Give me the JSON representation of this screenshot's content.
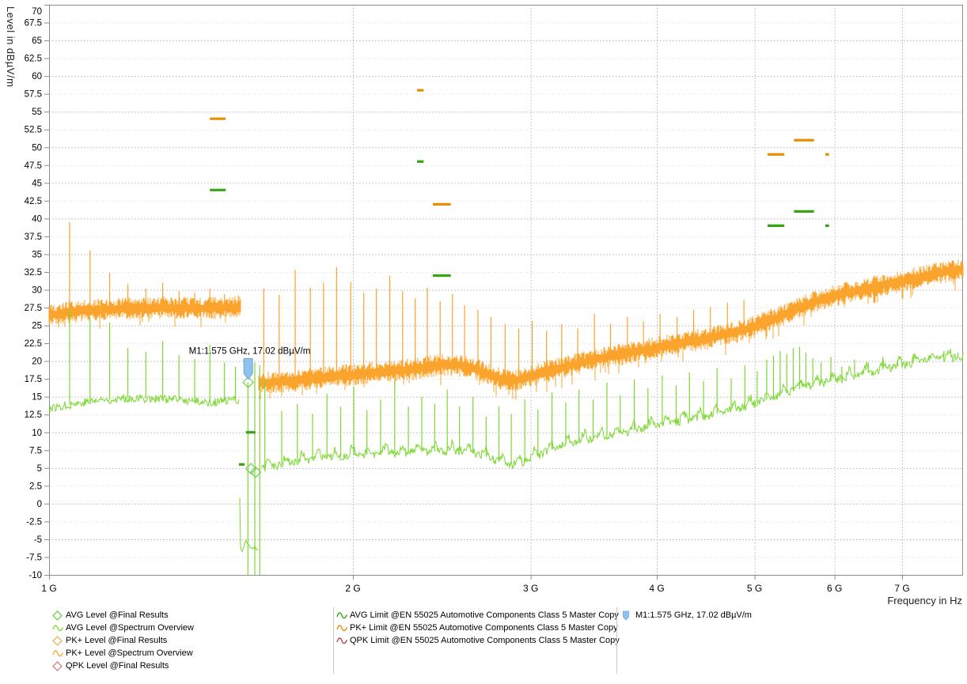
{
  "colors": {
    "trace_pk_overview": "#FBA42D",
    "trace_avg_overview": "#7CD832",
    "limit_pk": "#E88F00",
    "limit_avg": "#35A511",
    "limit_qpk": "#B04545",
    "diamond_avg": "#6FD349",
    "diamond_pk": "#F0B25C",
    "diamond_qpk": "#D97F7F",
    "marker_fill": "#8FC3EE",
    "marker_stroke": "#6FA6DD",
    "grid_minor": "#d7d7d7",
    "grid_major": "#b5b5b5",
    "border": "#8c8c8c",
    "tick_text": "#000000"
  },
  "chart_data": {
    "type": "line",
    "title": "",
    "xlabel": "Frequency in Hz",
    "ylabel": "Level in dBµV/m",
    "x_scale": "log",
    "xlim_ghz": [
      1.0,
      8.05
    ],
    "ylim": [
      -10,
      70
    ],
    "y_tick_step": 2.5,
    "y_ticks": [
      70,
      67.5,
      65,
      62.5,
      60,
      57.5,
      55,
      52.5,
      50,
      47.5,
      45,
      42.5,
      40,
      37.5,
      35,
      32.5,
      30,
      27.5,
      25,
      22.5,
      20,
      17.5,
      15,
      12.5,
      10,
      7.5,
      5,
      2.5,
      0,
      -2.5,
      -5,
      -7.5,
      -10
    ],
    "x_ticks": [
      {
        "f": 1,
        "label": "1 G"
      },
      {
        "f": 2,
        "label": "2 G"
      },
      {
        "f": 3,
        "label": "3 G"
      },
      {
        "f": 4,
        "label": "4 G"
      },
      {
        "f": 5,
        "label": "5 G"
      },
      {
        "f": 6,
        "label": "6 G"
      },
      {
        "f": 7,
        "label": "7 G"
      }
    ],
    "series": [
      {
        "name": "PK+ Level @Spectrum Overview",
        "color": "#FBA42D",
        "style": "band",
        "noise_db": 1.1,
        "seed": 42,
        "segments": [
          {
            "env": [
              [
                1.0,
                26.4
              ],
              [
                1.05,
                26.9
              ],
              [
                1.12,
                27.2
              ],
              [
                1.2,
                27.4
              ],
              [
                1.3,
                27.5
              ],
              [
                1.4,
                27.4
              ],
              [
                1.5,
                27.5
              ],
              [
                1.55,
                27.6
              ]
            ]
          },
          {
            "env": [
              [
                1.613,
                16.9
              ],
              [
                1.7,
                17.1
              ],
              [
                1.8,
                17.4
              ],
              [
                1.9,
                17.8
              ],
              [
                2.0,
                18.1
              ],
              [
                2.15,
                18.5
              ],
              [
                2.3,
                18.9
              ],
              [
                2.45,
                19.5
              ],
              [
                2.6,
                19.3
              ],
              [
                2.7,
                18.4
              ],
              [
                2.8,
                17.5
              ],
              [
                2.9,
                17.3
              ],
              [
                3.0,
                17.9
              ],
              [
                3.2,
                19.0
              ],
              [
                3.5,
                20.3
              ],
              [
                3.8,
                21.3
              ],
              [
                4.1,
                22.2
              ],
              [
                4.5,
                23.2
              ],
              [
                4.9,
                24.4
              ],
              [
                5.3,
                26.3
              ],
              [
                5.7,
                28.2
              ],
              [
                6.0,
                29.2
              ],
              [
                6.5,
                30.3
              ],
              [
                7.0,
                31.2
              ],
              [
                7.5,
                32.2
              ],
              [
                8.05,
                32.9
              ]
            ]
          }
        ],
        "spikes": [
          [
            1.048,
            39.5
          ],
          [
            1.098,
            35.5
          ],
          [
            1.148,
            32.4
          ],
          [
            1.197,
            30.8
          ],
          [
            1.247,
            30.2
          ],
          [
            1.296,
            31.0
          ],
          [
            1.345,
            29.8
          ],
          [
            1.394,
            29.6
          ],
          [
            1.443,
            30.2
          ],
          [
            1.492,
            29.4
          ],
          [
            1.54,
            29.2
          ],
          [
            1.632,
            30.2
          ],
          [
            1.69,
            29.3
          ],
          [
            1.753,
            32.8
          ],
          [
            1.815,
            30.3
          ],
          [
            1.87,
            31.0
          ],
          [
            1.927,
            33.2
          ],
          [
            1.99,
            31.1
          ],
          [
            2.05,
            29.6
          ],
          [
            2.11,
            30.2
          ],
          [
            2.175,
            32.0
          ],
          [
            2.24,
            29.8
          ],
          [
            2.305,
            28.8
          ],
          [
            2.37,
            30.3
          ],
          [
            2.44,
            28.4
          ],
          [
            2.51,
            29.4
          ],
          [
            2.58,
            27.8
          ],
          [
            2.66,
            27.2
          ],
          [
            2.74,
            26.2
          ],
          [
            2.83,
            25.2
          ],
          [
            2.92,
            24.6
          ],
          [
            3.01,
            25.6
          ],
          [
            3.11,
            24.2
          ],
          [
            3.22,
            25.2
          ],
          [
            3.34,
            24.6
          ],
          [
            3.47,
            26.6
          ],
          [
            3.6,
            25.2
          ],
          [
            3.74,
            26.2
          ],
          [
            3.88,
            25.6
          ],
          [
            4.03,
            26.6
          ],
          [
            4.19,
            26.2
          ],
          [
            4.35,
            27.2
          ],
          [
            4.52,
            27.6
          ],
          [
            4.7,
            28.2
          ],
          [
            4.88,
            28.6
          ]
        ]
      },
      {
        "name": "AVG Level @Spectrum Overview",
        "color": "#7CD832",
        "style": "line",
        "noise_db": 1.2,
        "seed": 77,
        "segments": [
          {
            "env": [
              [
                1.0,
                13.3
              ],
              [
                1.03,
                13.7
              ],
              [
                1.07,
                14.1
              ],
              [
                1.12,
                14.5
              ],
              [
                1.2,
                14.8
              ],
              [
                1.3,
                14.7
              ],
              [
                1.38,
                14.4
              ],
              [
                1.45,
                14.2
              ],
              [
                1.5,
                14.4
              ],
              [
                1.543,
                14.6
              ]
            ]
          },
          {
            "env": [
              [
                1.543,
                14.5
              ],
              [
                1.546,
                -5.6
              ],
              [
                1.552,
                -7.0
              ],
              [
                1.558,
                -6.2
              ],
              [
                1.565,
                -5.2
              ],
              [
                1.572,
                -5.6
              ],
              [
                1.58,
                -5.9
              ],
              [
                1.59,
                -6.3
              ],
              [
                1.6,
                -6.0
              ],
              [
                1.612,
                -6.8
              ]
            ],
            "noise_db": 0.5
          },
          {
            "env": [
              [
                1.62,
                4.9
              ],
              [
                1.7,
                5.4
              ],
              [
                1.8,
                6.1
              ],
              [
                1.9,
                6.4
              ],
              [
                2.0,
                6.8
              ],
              [
                2.2,
                7.1
              ],
              [
                2.4,
                7.3
              ],
              [
                2.6,
                7.5
              ],
              [
                2.75,
                6.2
              ],
              [
                2.85,
                5.4
              ],
              [
                2.95,
                5.8
              ],
              [
                3.1,
                7.2
              ],
              [
                3.3,
                8.6
              ],
              [
                3.6,
                9.6
              ],
              [
                4.0,
                10.9
              ],
              [
                4.4,
                12.0
              ],
              [
                4.8,
                13.3
              ],
              [
                5.1,
                14.4
              ],
              [
                5.4,
                15.6
              ],
              [
                5.7,
                16.6
              ],
              [
                6.0,
                17.3
              ],
              [
                6.4,
                18.2
              ],
              [
                6.8,
                19.0
              ],
              [
                7.2,
                19.7
              ],
              [
                7.6,
                20.3
              ],
              [
                8.05,
                20.6
              ]
            ],
            "humps": true
          }
        ],
        "spikes": [
          [
            1.048,
            27.2
          ],
          [
            1.098,
            26.2
          ],
          [
            1.148,
            25.4
          ],
          [
            1.197,
            21.8
          ],
          [
            1.247,
            21.3
          ],
          [
            1.296,
            22.8
          ],
          [
            1.345,
            20.8
          ],
          [
            1.394,
            20.3
          ],
          [
            1.443,
            22.3
          ],
          [
            1.492,
            19.8
          ],
          [
            1.53,
            19.2
          ],
          [
            1.636,
            17.4
          ],
          [
            1.7,
            13.0
          ],
          [
            1.762,
            14.0
          ],
          [
            1.824,
            12.6
          ],
          [
            1.885,
            15.4
          ],
          [
            1.945,
            13.6
          ],
          [
            2.004,
            16.4
          ],
          [
            2.065,
            13.1
          ],
          [
            2.13,
            14.6
          ],
          [
            2.2,
            17.2
          ],
          [
            2.27,
            13.6
          ],
          [
            2.34,
            15.0
          ],
          [
            2.41,
            14.0
          ],
          [
            2.48,
            16.0
          ],
          [
            2.55,
            13.6
          ],
          [
            2.63,
            15.0
          ],
          [
            2.71,
            12.2
          ],
          [
            2.79,
            13.6
          ],
          [
            2.87,
            12.6
          ],
          [
            2.96,
            14.6
          ],
          [
            3.05,
            13.2
          ],
          [
            3.15,
            15.6
          ],
          [
            3.25,
            14.2
          ],
          [
            3.35,
            16.0
          ],
          [
            3.46,
            14.6
          ],
          [
            3.57,
            17.0
          ],
          [
            3.68,
            15.2
          ],
          [
            3.8,
            17.4
          ],
          [
            3.92,
            16.2
          ],
          [
            4.05,
            18.0
          ],
          [
            4.18,
            16.6
          ],
          [
            4.31,
            18.4
          ],
          [
            4.45,
            17.2
          ],
          [
            4.59,
            19.0
          ],
          [
            4.74,
            17.6
          ],
          [
            4.89,
            19.4
          ],
          [
            5.03,
            18.6
          ],
          [
            5.14,
            20.2
          ],
          [
            5.22,
            20.8
          ],
          [
            5.3,
            21.4
          ],
          [
            5.38,
            21.0
          ],
          [
            5.46,
            21.8
          ],
          [
            5.54,
            22.0
          ],
          [
            5.62,
            21.2
          ],
          [
            5.71,
            20.4
          ],
          [
            5.82,
            19.8
          ],
          [
            5.95,
            20.6
          ],
          [
            6.1,
            19.2
          ],
          [
            6.28,
            20.2
          ],
          [
            6.48,
            19.8
          ],
          [
            6.7,
            20.6
          ],
          [
            6.93,
            20.2
          ],
          [
            7.18,
            21.0
          ],
          [
            7.44,
            20.8
          ],
          [
            7.7,
            21.4
          ],
          [
            7.95,
            21.2
          ]
        ],
        "gap_drops": [
          [
            1.574,
            17.02
          ],
          [
            1.599,
            19.8
          ],
          [
            1.617,
            19.4
          ]
        ]
      }
    ],
    "limits": [
      {
        "name": "PK+ Limit @EN 55025 Automotive Components Class 5 Master Copy",
        "color": "#E88F00",
        "segments": [
          [
            1.443,
            1.496,
            54
          ],
          [
            2.315,
            2.35,
            58
          ],
          [
            2.4,
            2.5,
            42
          ],
          [
            5.15,
            5.35,
            49
          ],
          [
            5.47,
            5.725,
            51
          ],
          [
            5.875,
            5.925,
            49
          ]
        ]
      },
      {
        "name": "AVG Limit @EN 55025 Automotive Components Class 5 Master Copy",
        "color": "#35A511",
        "segments": [
          [
            1.443,
            1.496,
            44
          ],
          [
            2.315,
            2.35,
            48
          ],
          [
            2.4,
            2.5,
            32
          ],
          [
            5.15,
            5.35,
            39
          ],
          [
            5.47,
            5.725,
            41
          ],
          [
            5.875,
            5.925,
            39
          ],
          [
            1.567,
            1.601,
            10
          ],
          [
            1.542,
            1.562,
            5.5
          ]
        ]
      },
      {
        "name": "QPK Limit @EN 55025 Automotive Components Class 5 Master Copy",
        "color": "#B04545",
        "segments": []
      }
    ],
    "final_results": [
      {
        "series": "AVG Level @Final Results",
        "color": "#6FD349",
        "points": [
          [
            1.575,
            17.02
          ],
          [
            1.585,
            4.9
          ],
          [
            1.602,
            4.4
          ]
        ]
      }
    ],
    "marker": {
      "id": "M1",
      "f_ghz": 1.575,
      "level_db": 17.02,
      "label": "M1:1.575 GHz, 17.02 dBµV/m"
    }
  },
  "legend": {
    "columns": [
      {
        "x": 66,
        "items": [
          {
            "icon": "diamond",
            "color": "#6FD349",
            "label": "AVG Level @Final Results"
          },
          {
            "icon": "wave",
            "color": "#8CD93E",
            "label": "AVG Level @Spectrum Overview"
          },
          {
            "icon": "diamond",
            "color": "#F0B25C",
            "label": "PK+ Level @Final Results"
          },
          {
            "icon": "wave",
            "color": "#FBAA3C",
            "label": "PK+ Level @Spectrum Overview"
          },
          {
            "icon": "diamond",
            "color": "#D97F7F",
            "label": "QPK Level @Final Results"
          }
        ]
      },
      {
        "x": 425,
        "items": [
          {
            "icon": "wave",
            "color": "#35A511",
            "label": "AVG Limit @EN 55025 Automotive Components Class 5 Master Copy"
          },
          {
            "icon": "wave",
            "color": "#E88F00",
            "label": "PK+ Limit @EN 55025 Automotive Components Class 5 Master Copy"
          },
          {
            "icon": "wave",
            "color": "#B04545",
            "label": "QPK Limit @EN 55025 Automotive Components Class 5 Master Copy"
          }
        ]
      },
      {
        "x": 786,
        "items": [
          {
            "icon": "flag",
            "color": "#8FC3EE",
            "label": "M1:1.575 GHz, 17.02 dBµV/m"
          }
        ]
      }
    ],
    "separators_x": [
      421,
      779
    ]
  }
}
